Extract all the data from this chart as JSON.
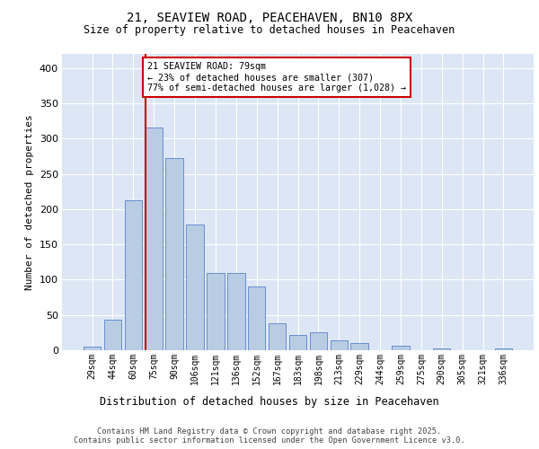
{
  "title_line1": "21, SEAVIEW ROAD, PEACEHAVEN, BN10 8PX",
  "title_line2": "Size of property relative to detached houses in Peacehaven",
  "xlabel": "Distribution of detached houses by size in Peacehaven",
  "ylabel": "Number of detached properties",
  "categories": [
    "29sqm",
    "44sqm",
    "60sqm",
    "75sqm",
    "90sqm",
    "106sqm",
    "121sqm",
    "136sqm",
    "152sqm",
    "167sqm",
    "183sqm",
    "198sqm",
    "213sqm",
    "229sqm",
    "244sqm",
    "259sqm",
    "275sqm",
    "290sqm",
    "305sqm",
    "321sqm",
    "336sqm"
  ],
  "values": [
    5,
    43,
    213,
    315,
    272,
    178,
    110,
    110,
    90,
    38,
    22,
    25,
    14,
    10,
    0,
    6,
    0,
    2,
    0,
    0,
    3
  ],
  "bar_color": "#b8cce4",
  "bar_edge_color": "#4472c4",
  "red_line_bin_index": 3,
  "annotation_text": "21 SEAVIEW ROAD: 79sqm\n← 23% of detached houses are smaller (307)\n77% of semi-detached houses are larger (1,028) →",
  "annotation_box_color": "#ffffff",
  "annotation_box_edge": "#cc0000",
  "ylim": [
    0,
    420
  ],
  "yticks": [
    0,
    50,
    100,
    150,
    200,
    250,
    300,
    350,
    400
  ],
  "background_color": "#dce6f5",
  "footer_line1": "Contains HM Land Registry data © Crown copyright and database right 2025.",
  "footer_line2": "Contains public sector information licensed under the Open Government Licence v3.0."
}
